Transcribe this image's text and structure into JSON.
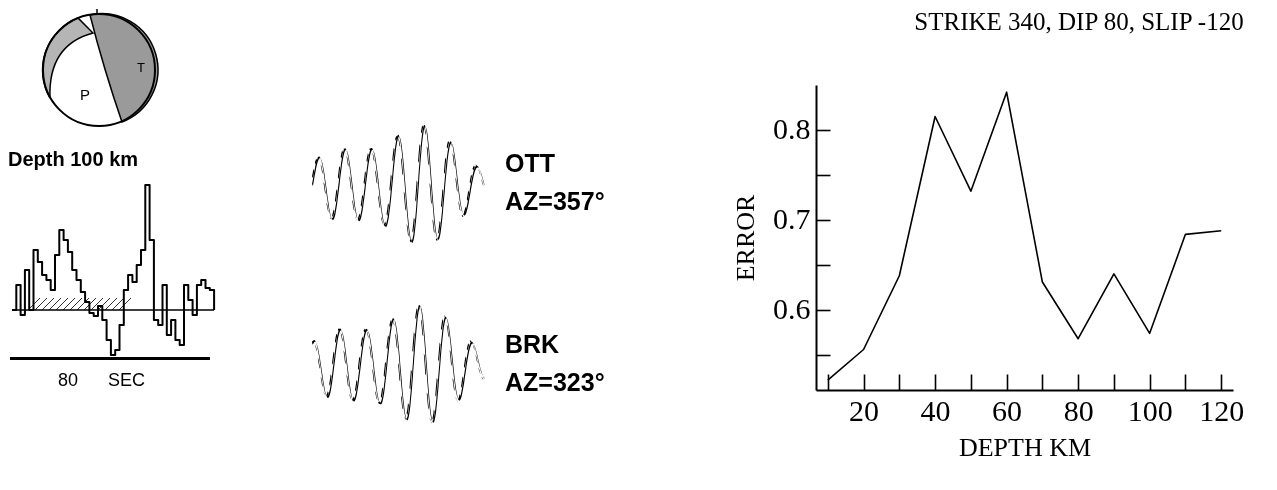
{
  "chart_data": {
    "type": "line",
    "title": "STRIKE 340, DIP 80, SLIP -120",
    "xlabel": "DEPTH KM",
    "ylabel": "ERROR",
    "x": [
      10,
      20,
      30,
      40,
      50,
      60,
      70,
      80,
      90,
      100,
      110,
      120
    ],
    "values": [
      0.522,
      0.556,
      0.638,
      0.815,
      0.732,
      0.842,
      0.631,
      0.568,
      0.64,
      0.574,
      0.684,
      0.688
    ],
    "color": "#000000",
    "marker": "none",
    "line_style": "solid",
    "grid": false,
    "xlim": [
      6.7,
      123.3
    ],
    "xticks": [
      {
        "value": 10,
        "label": null
      },
      20,
      {
        "value": 30,
        "label": null
      },
      40,
      {
        "value": 50,
        "label": null
      },
      60,
      {
        "value": 70,
        "label": null
      },
      80,
      {
        "value": 90,
        "label": null
      },
      100,
      {
        "value": 110,
        "label": null
      },
      120
    ],
    "ylim": [
      0.511,
      0.85
    ],
    "yticks": [
      {
        "value": 0.55,
        "label": null
      },
      0.6,
      {
        "value": 0.65,
        "label": null
      },
      0.7,
      {
        "value": 0.75,
        "label": null
      },
      0.8
    ],
    "annotations": [
      "P",
      "T",
      "Depth 100 km",
      "80",
      "SEC",
      "OTT",
      "AZ=357°",
      "BRK",
      "AZ=323°"
    ]
  }
}
